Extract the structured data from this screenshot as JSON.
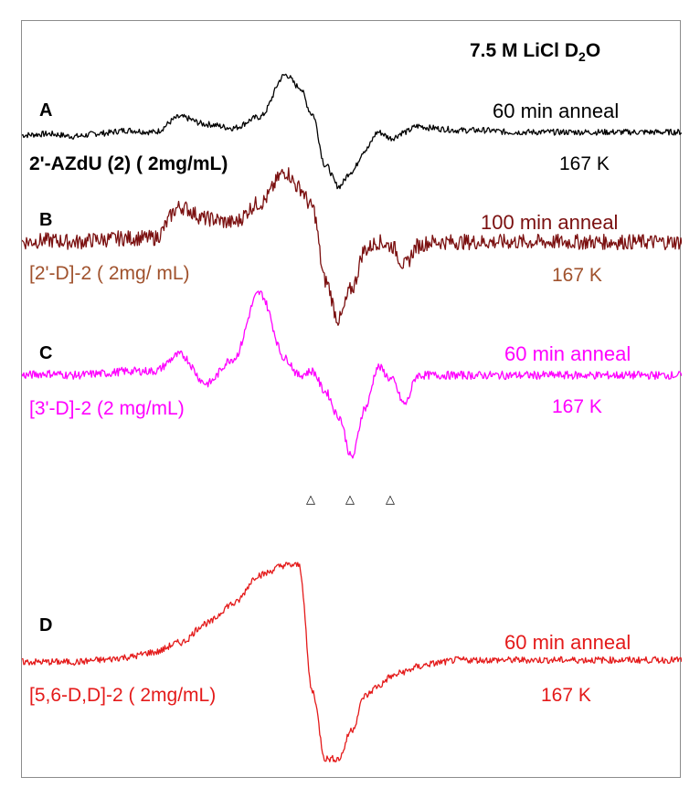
{
  "title": {
    "main": "7.5 M LiCl D",
    "sub": "2",
    "end": "O"
  },
  "markers": [
    "△",
    "△",
    "△"
  ],
  "panels": [
    {
      "letter": "A",
      "sample": "2'-AZdU (2) ( 2mg/mL)",
      "anneal": "60 min anneal",
      "temp": "167 K",
      "color": "#000000"
    },
    {
      "letter": "B",
      "sample": "[2'-D]-2 ( 2mg/ mL)",
      "anneal": "100 min anneal",
      "temp": "167 K",
      "color": "#7b1010",
      "label_color": "#a0522d"
    },
    {
      "letter": "C",
      "sample": "[3'-D]-2 (2 mg/mL)",
      "anneal": "60 min anneal",
      "temp": "167 K",
      "color": "#ff00ff"
    },
    {
      "letter": "D",
      "sample": "[5,6-D,D]-2 ( 2mg/mL)",
      "anneal": "60 min anneal",
      "temp": "167 K",
      "color": "#e41a1a"
    }
  ],
  "chart_data": {
    "type": "line",
    "xlabel": "",
    "ylabel": "",
    "grid": false,
    "legend": "none",
    "x": [
      0,
      0.04,
      0.08,
      0.12,
      0.16,
      0.2,
      0.24,
      0.28,
      0.32,
      0.36,
      0.4,
      0.42,
      0.44,
      0.46,
      0.48,
      0.5,
      0.52,
      0.54,
      0.56,
      0.58,
      0.6,
      0.62,
      0.64,
      0.66,
      0.7,
      0.74,
      0.78,
      0.82,
      0.86,
      0.9,
      0.95,
      1.0
    ],
    "series": [
      {
        "name": "A",
        "noise": 0.05,
        "values": [
          0,
          0.02,
          -0.02,
          0.03,
          0.08,
          0.05,
          0.3,
          0.18,
          0.12,
          0.3,
          1.0,
          0.8,
          0.35,
          -0.5,
          -0.85,
          -0.6,
          -0.25,
          0.05,
          -0.05,
          0.05,
          0.15,
          0.12,
          0.1,
          0.08,
          0.08,
          0.05,
          0.05,
          0.05,
          0.05,
          0.05,
          0.05,
          0.05
        ]
      },
      {
        "name": "B",
        "noise": 0.1,
        "values": [
          0,
          0.02,
          0.0,
          0.03,
          0.05,
          0.05,
          0.45,
          0.3,
          0.25,
          0.5,
          0.9,
          0.7,
          0.45,
          -0.5,
          -1.0,
          -0.6,
          -0.1,
          0.0,
          -0.05,
          -0.3,
          -0.05,
          0.0,
          0.0,
          0.0,
          0.0,
          0.0,
          0.0,
          0.0,
          0.0,
          0.0,
          0.0,
          0.0
        ]
      },
      {
        "name": "C",
        "noise": 0.05,
        "values": [
          0,
          0.02,
          0.0,
          0.02,
          0.05,
          0.05,
          0.25,
          -0.1,
          0.2,
          1.0,
          0.2,
          0.0,
          0.05,
          -0.2,
          -0.5,
          -1.0,
          -0.4,
          0.1,
          -0.05,
          -0.35,
          0.0,
          0.0,
          0.0,
          0.0,
          0.0,
          0.0,
          0.0,
          0.0,
          0.0,
          0.0,
          0.0,
          0.0
        ]
      },
      {
        "name": "D",
        "noise": 0.035,
        "values": [
          0,
          0.0,
          0.0,
          0.02,
          0.05,
          0.1,
          0.2,
          0.4,
          0.6,
          0.9,
          1.0,
          1.0,
          -0.3,
          -1.0,
          -1.0,
          -0.7,
          -0.35,
          -0.25,
          -0.15,
          -0.1,
          -0.05,
          -0.02,
          0.0,
          0.02,
          0.02,
          0.02,
          0.02,
          0.02,
          0.02,
          0.02,
          0.02,
          0.02
        ]
      }
    ]
  }
}
